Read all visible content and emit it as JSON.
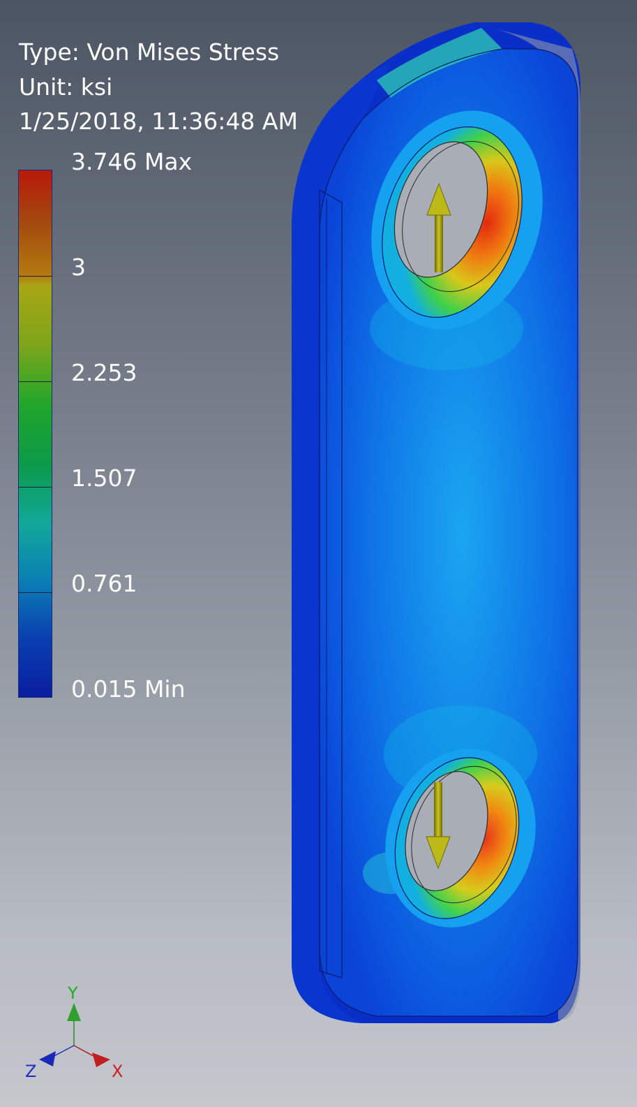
{
  "legend": {
    "type_line": "Type: Von Mises Stress",
    "unit_line": "Unit: ksi",
    "date_line": "1/25/2018, 11:36:48 AM",
    "ticks": [
      "3.746 Max",
      "3",
      "2.253",
      "1.507",
      "0.761",
      "0.015 Min"
    ],
    "colors": {
      "max": "#b81a0a",
      "high": "#b57a10",
      "mid_high": "#7ea51a",
      "mid": "#1ea62c",
      "mid_low": "#11a99a",
      "low": "#0b7fb4",
      "min": "#0a1da0"
    }
  },
  "triad": {
    "y_label": "Y",
    "x_label": "X",
    "z_label": "Z"
  },
  "load_arrows": [
    {
      "name": "top-load-arrow",
      "direction": "up"
    },
    {
      "name": "bottom-load-arrow",
      "direction": "down"
    }
  ],
  "icons": [
    "axis-triad-icon",
    "load-arrow-icon"
  ]
}
